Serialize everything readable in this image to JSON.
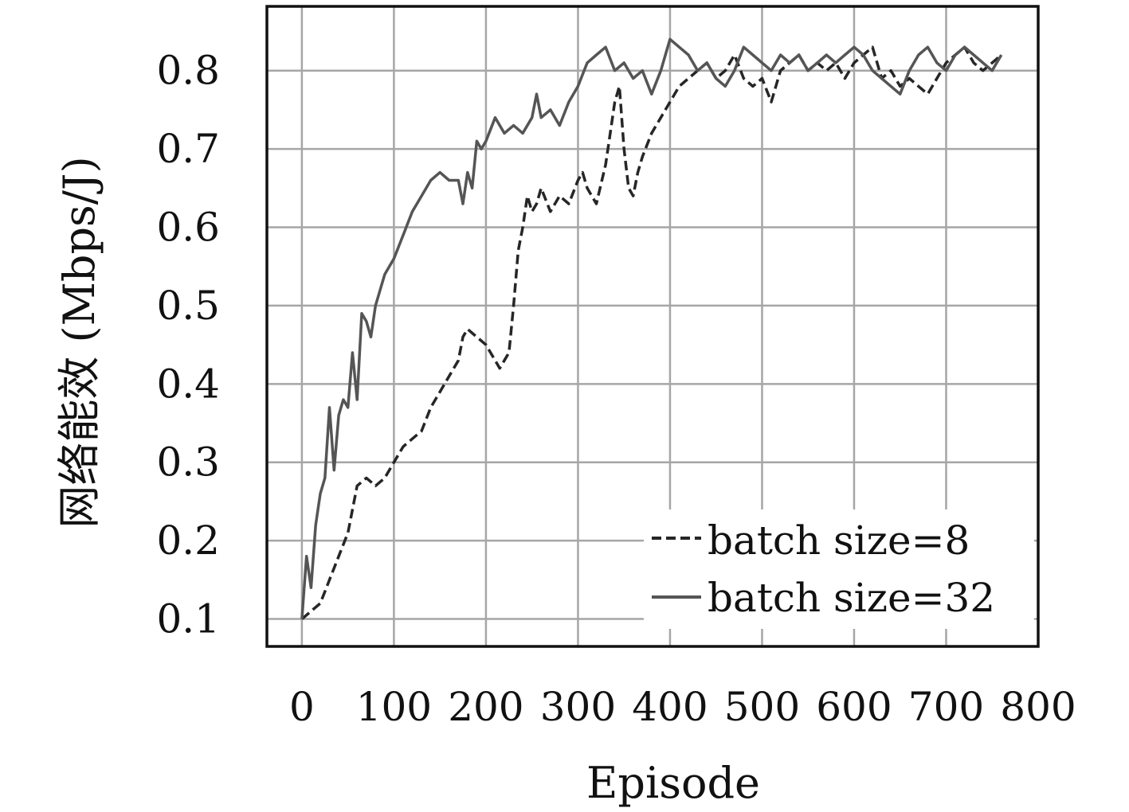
{
  "chart_data": {
    "type": "line",
    "title": "",
    "xlabel": "Episode",
    "ylabel": "网络能效 (Mbps/J)",
    "xlim": [
      -38,
      800
    ],
    "ylim": [
      0.065,
      0.882
    ],
    "xticks": [
      0,
      100,
      200,
      300,
      400,
      500,
      600,
      700,
      800
    ],
    "yticks": [
      0.1,
      0.2,
      0.3,
      0.4,
      0.5,
      0.6,
      0.7,
      0.8
    ],
    "xtick_labels": [
      "0",
      "100",
      "200",
      "300",
      "400",
      "500",
      "600",
      "700",
      "800"
    ],
    "ytick_labels": [
      "0.1",
      "0.2",
      "0.3",
      "0.4",
      "0.5",
      "0.6",
      "0.7",
      "0.8"
    ],
    "grid": true,
    "legend": "bottom-right",
    "series": [
      {
        "name": "batch size=8",
        "style": "dashed",
        "color": "#262626",
        "x": [
          0,
          10,
          20,
          30,
          40,
          50,
          60,
          70,
          80,
          90,
          100,
          110,
          120,
          130,
          140,
          150,
          160,
          170,
          175,
          180,
          190,
          200,
          205,
          210,
          215,
          220,
          225,
          230,
          235,
          240,
          245,
          250,
          255,
          260,
          270,
          280,
          290,
          300,
          305,
          310,
          320,
          330,
          335,
          340,
          345,
          350,
          355,
          360,
          365,
          370,
          380,
          390,
          400,
          410,
          420,
          430,
          440,
          450,
          460,
          470,
          480,
          490,
          500,
          510,
          520,
          530,
          540,
          550,
          560,
          570,
          580,
          590,
          600,
          610,
          620,
          630,
          640,
          650,
          660,
          670,
          680,
          690,
          700,
          710,
          720,
          730,
          740,
          750,
          760
        ],
        "y": [
          0.1,
          0.11,
          0.12,
          0.15,
          0.18,
          0.21,
          0.27,
          0.28,
          0.27,
          0.28,
          0.3,
          0.32,
          0.33,
          0.34,
          0.37,
          0.39,
          0.41,
          0.43,
          0.46,
          0.47,
          0.46,
          0.45,
          0.44,
          0.43,
          0.42,
          0.43,
          0.44,
          0.5,
          0.57,
          0.6,
          0.64,
          0.62,
          0.63,
          0.65,
          0.62,
          0.64,
          0.63,
          0.66,
          0.67,
          0.65,
          0.63,
          0.68,
          0.72,
          0.76,
          0.78,
          0.7,
          0.65,
          0.64,
          0.67,
          0.69,
          0.72,
          0.74,
          0.76,
          0.78,
          0.79,
          0.8,
          0.81,
          0.79,
          0.8,
          0.82,
          0.79,
          0.78,
          0.79,
          0.76,
          0.8,
          0.81,
          0.82,
          0.8,
          0.81,
          0.8,
          0.81,
          0.79,
          0.81,
          0.82,
          0.83,
          0.79,
          0.8,
          0.78,
          0.79,
          0.78,
          0.77,
          0.79,
          0.81,
          0.82,
          0.83,
          0.81,
          0.8,
          0.81,
          0.82
        ]
      },
      {
        "name": "batch size=32",
        "style": "solid",
        "color": "#555555",
        "x": [
          0,
          5,
          10,
          15,
          20,
          25,
          30,
          35,
          40,
          45,
          50,
          55,
          60,
          65,
          70,
          75,
          80,
          85,
          90,
          100,
          110,
          120,
          130,
          140,
          150,
          160,
          170,
          175,
          180,
          185,
          190,
          195,
          200,
          210,
          220,
          230,
          240,
          250,
          255,
          260,
          270,
          280,
          290,
          300,
          310,
          320,
          330,
          340,
          350,
          360,
          370,
          380,
          390,
          400,
          410,
          420,
          430,
          440,
          450,
          460,
          470,
          480,
          490,
          500,
          510,
          520,
          530,
          540,
          550,
          560,
          570,
          580,
          590,
          600,
          610,
          620,
          630,
          640,
          650,
          660,
          670,
          680,
          690,
          700,
          710,
          720,
          730,
          740,
          750,
          760
        ],
        "y": [
          0.1,
          0.18,
          0.14,
          0.22,
          0.26,
          0.28,
          0.37,
          0.29,
          0.36,
          0.38,
          0.37,
          0.44,
          0.38,
          0.49,
          0.48,
          0.46,
          0.5,
          0.52,
          0.54,
          0.56,
          0.59,
          0.62,
          0.64,
          0.66,
          0.67,
          0.66,
          0.66,
          0.63,
          0.67,
          0.65,
          0.71,
          0.7,
          0.71,
          0.74,
          0.72,
          0.73,
          0.72,
          0.74,
          0.77,
          0.74,
          0.75,
          0.73,
          0.76,
          0.78,
          0.81,
          0.82,
          0.83,
          0.8,
          0.81,
          0.79,
          0.8,
          0.77,
          0.8,
          0.84,
          0.83,
          0.82,
          0.8,
          0.81,
          0.79,
          0.78,
          0.8,
          0.83,
          0.82,
          0.81,
          0.8,
          0.82,
          0.81,
          0.82,
          0.8,
          0.81,
          0.82,
          0.81,
          0.82,
          0.83,
          0.82,
          0.8,
          0.79,
          0.78,
          0.77,
          0.8,
          0.82,
          0.83,
          0.81,
          0.8,
          0.82,
          0.83,
          0.82,
          0.81,
          0.8,
          0.82
        ]
      }
    ]
  }
}
